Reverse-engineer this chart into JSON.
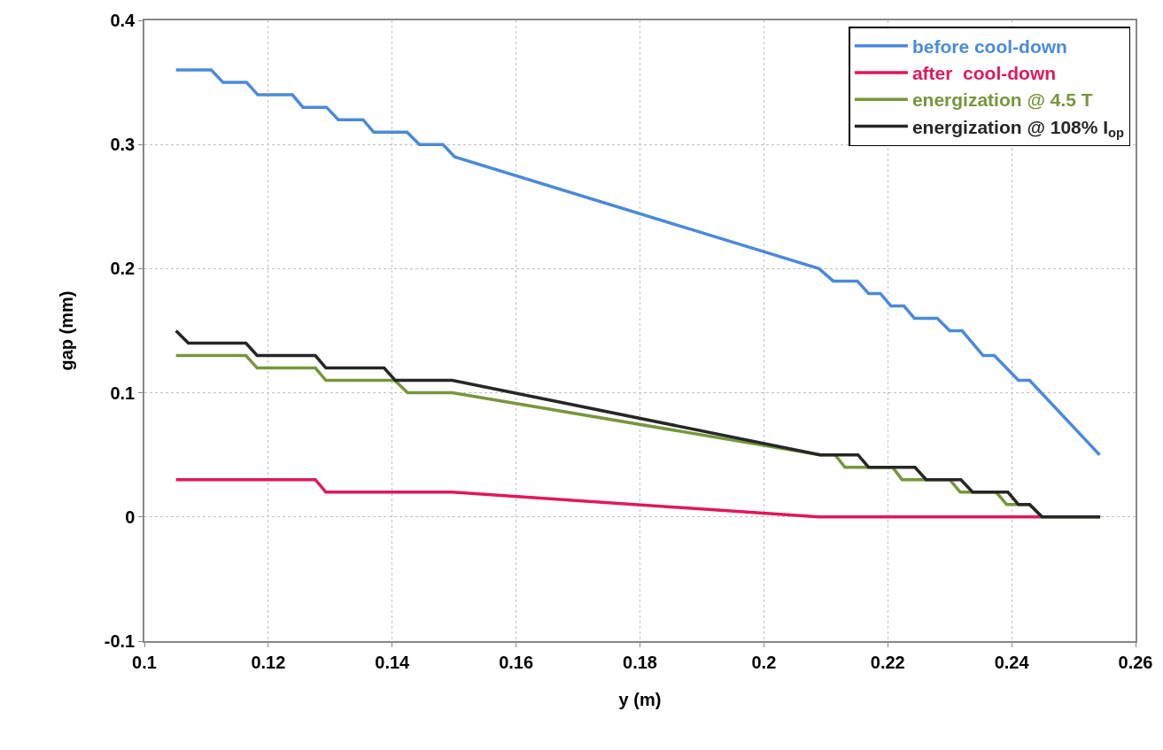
{
  "chart_data": {
    "type": "line",
    "xlabel": "y (m)",
    "ylabel": "gap (mm)",
    "xlim": [
      0.1,
      0.26
    ],
    "xticks": [
      0.1,
      0.12,
      0.14,
      0.16,
      0.18,
      0.2,
      0.22,
      0.24,
      0.26
    ],
    "ylim": [
      -0.1,
      0.4
    ],
    "yticks": [
      -0.1,
      0,
      0.1,
      0.2,
      0.3,
      0.4
    ],
    "grid": true,
    "legend": "top right",
    "marker": "none",
    "line_style": "solid",
    "series": [
      {
        "name": "before cool-down",
        "color": "#4a8ad8",
        "x": [
          0.1051,
          0.1108,
          0.1127,
          0.1165,
          0.1183,
          0.1239,
          0.1256,
          0.1294,
          0.1313,
          0.1353,
          0.137,
          0.1424,
          0.1444,
          0.1482,
          0.1501,
          0.2089,
          0.2112,
          0.2151,
          0.2169,
          0.2188,
          0.2205,
          0.2226,
          0.2243,
          0.228,
          0.23,
          0.232,
          0.2354,
          0.2372,
          0.2411,
          0.2429,
          0.2542
        ],
        "values": [
          0.36,
          0.36,
          0.35,
          0.35,
          0.34,
          0.34,
          0.33,
          0.33,
          0.32,
          0.32,
          0.31,
          0.31,
          0.3,
          0.3,
          0.29,
          0.2,
          0.19,
          0.19,
          0.18,
          0.18,
          0.17,
          0.17,
          0.16,
          0.16,
          0.15,
          0.15,
          0.13,
          0.13,
          0.11,
          0.11,
          0.05
        ]
      },
      {
        "name": "after  cool-down",
        "color": "#e0185a",
        "x": [
          0.1051,
          0.1276,
          0.1293,
          0.1497,
          0.2089,
          0.2447
        ],
        "values": [
          0.03,
          0.03,
          0.02,
          0.02,
          0,
          0
        ]
      },
      {
        "name": "energization @ 4.5 T",
        "color": "#77963c",
        "x": [
          0.1051,
          0.1164,
          0.1182,
          0.1276,
          0.1293,
          0.1404,
          0.1425,
          0.1497,
          0.2091,
          0.2115,
          0.2131,
          0.2208,
          0.2223,
          0.23,
          0.2317,
          0.2375,
          0.2392,
          0.2429,
          0.2449,
          0.2543
        ],
        "values": [
          0.13,
          0.13,
          0.12,
          0.12,
          0.11,
          0.11,
          0.1,
          0.1,
          0.05,
          0.05,
          0.04,
          0.04,
          0.03,
          0.03,
          0.02,
          0.02,
          0.01,
          0.01,
          0,
          0
        ]
      },
      {
        "name": "energization @ 108% I$_{op}$",
        "color": "#262626",
        "x": [
          0.1051,
          0.1071,
          0.1164,
          0.1182,
          0.1276,
          0.1293,
          0.1387,
          0.1405,
          0.1497,
          0.2091,
          0.2152,
          0.2169,
          0.2244,
          0.2262,
          0.2318,
          0.2337,
          0.2394,
          0.2411,
          0.2429,
          0.2449,
          0.2543
        ],
        "values": [
          0.15,
          0.14,
          0.14,
          0.13,
          0.13,
          0.12,
          0.12,
          0.11,
          0.11,
          0.05,
          0.05,
          0.04,
          0.04,
          0.03,
          0.03,
          0.02,
          0.02,
          0.01,
          0.01,
          0,
          0
        ]
      }
    ]
  }
}
